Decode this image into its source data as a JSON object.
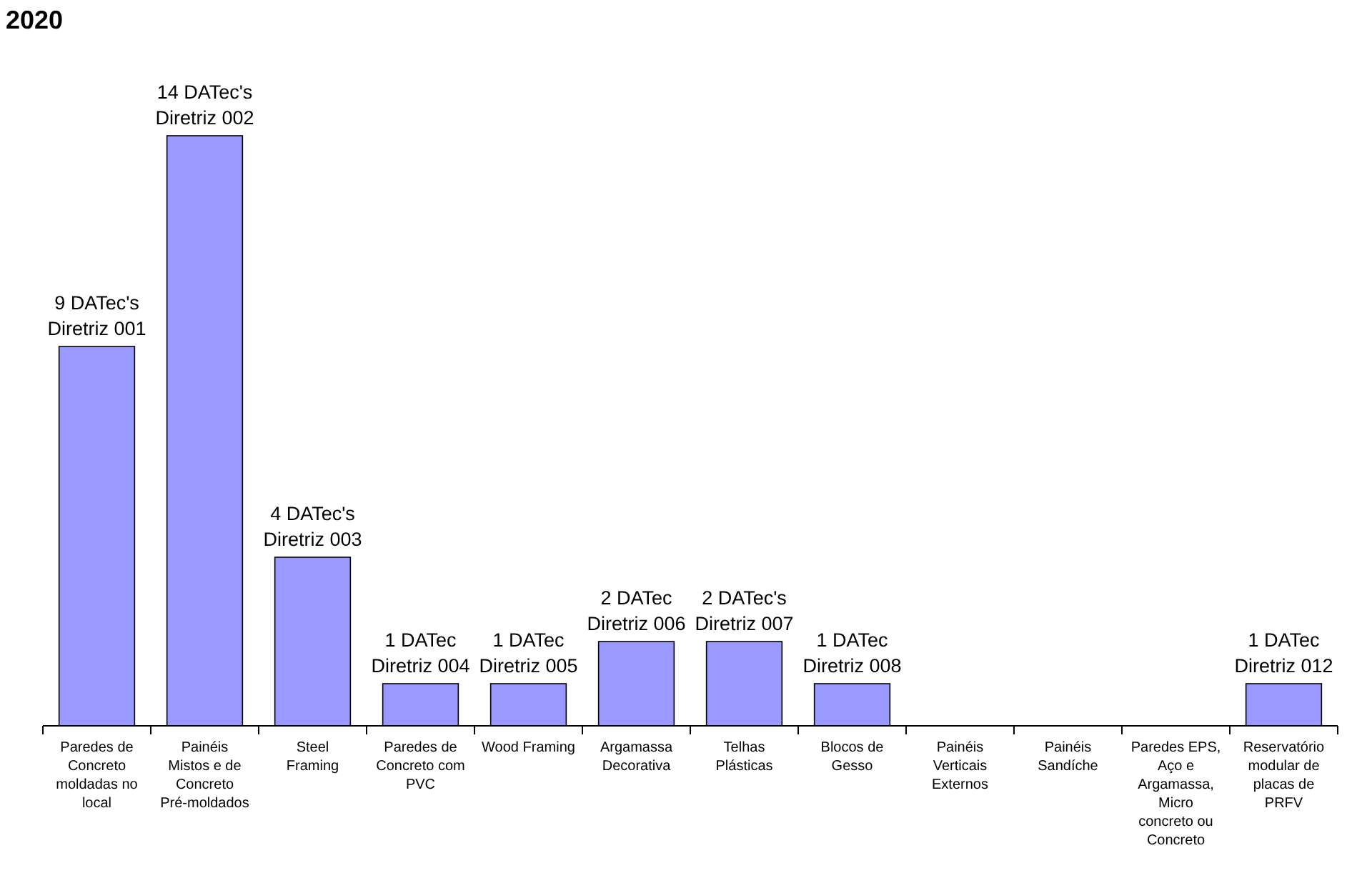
{
  "chart_data": {
    "type": "bar",
    "title": "2020",
    "categories": [
      "Paredes de Concreto moldadas no local",
      "Painéis Mistos e de Concreto Pré-moldados",
      "Steel Framing",
      "Paredes de Concreto com PVC",
      "Wood Framing",
      "Argamassa Decorativa",
      "Telhas Plásticas",
      "Blocos de Gesso",
      "Painéis Verticais Externos",
      "Painéis Sandíche",
      "Paredes EPS, Aço e Argamassa, Micro concreto ou Concreto",
      "Reservatório modular de placas de PRFV"
    ],
    "values": [
      9,
      14,
      4,
      1,
      1,
      2,
      2,
      1,
      0,
      0,
      0,
      1
    ],
    "value_labels": [
      "9 DATec's\nDiretriz 001",
      "14 DATec's\nDiretriz 002",
      "4 DATec's\nDiretriz 003",
      "1 DATec\nDiretriz 004",
      "1 DATec\nDiretriz 005",
      "2 DATec\nDiretriz 006",
      "2 DATec's\nDiretriz 007",
      "1 DATec\nDiretriz 008",
      null,
      null,
      null,
      "1 DATec\nDiretriz 012"
    ],
    "color": "#9999ff"
  }
}
